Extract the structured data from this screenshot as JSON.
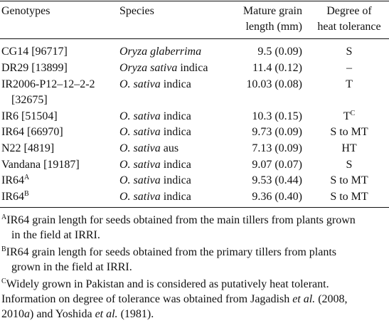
{
  "header": {
    "genotypes": "Genotypes",
    "species": "Species",
    "length_l1": "Mature grain",
    "length_l2": "length (mm)",
    "degree_l1": "Degree of",
    "degree_l2": "heat tolerance"
  },
  "rows": [
    {
      "genotype": "CG14 [96717]",
      "species_italic": "Oryza glaberrima",
      "species_rest": "",
      "length": "9.5 (0.09)",
      "degree": "S"
    },
    {
      "genotype": "DR29 [13899]",
      "species_italic": "Oryza sativa",
      "species_rest": " indica",
      "length": "11.4 (0.12)",
      "degree": "–"
    },
    {
      "genotype": "IR2006-P12–12–2-2",
      "genotype_cont": "[32675]",
      "species_italic": "O. sativa",
      "species_rest": " indica",
      "length": "10.03 (0.08)",
      "degree": "T"
    },
    {
      "genotype": "IR6 [51504]",
      "species_italic": "O. sativa",
      "species_rest": " indica",
      "length": "10.3 (0.15)",
      "degree": "T",
      "degree_sup": "C"
    },
    {
      "genotype": "IR64 [66970]",
      "species_italic": "O. sativa",
      "species_rest": " indica",
      "length": "9.73 (0.09)",
      "degree": "S to MT"
    },
    {
      "genotype": "N22 [4819]",
      "species_italic": "O. sativa",
      "species_rest": " aus",
      "length": "7.13 (0.09)",
      "degree": "HT"
    },
    {
      "genotype": "Vandana [19187]",
      "species_italic": "O. sativa",
      "species_rest": " indica",
      "length": "9.07 (0.07)",
      "degree": "S"
    },
    {
      "genotype": "IR64",
      "genotype_sup": "A",
      "species_italic": "O. sativa",
      "species_rest": " indica",
      "length": "9.53 (0.44)",
      "degree": "S to MT"
    },
    {
      "genotype": "IR64",
      "genotype_sup": "B",
      "species_italic": "O. sativa",
      "species_rest": " indica",
      "length": "9.36 (0.40)",
      "degree": "S to MT"
    }
  ],
  "footnotes": {
    "a_mark": "A",
    "a_l1": "IR64 grain length for seeds obtained from the main tillers from plants grown",
    "a_l2": "in the field at IRRI.",
    "b_mark": "B",
    "b_l1": "IR64 grain length for seeds obtained from the primary tillers from plants",
    "b_l2": "grown in the field at IRRI.",
    "c_mark": "C",
    "c_l1": "Widely grown in Pakistan and is considered as putatively heat tolerant.",
    "c_l2a": "Information on degree of tolerance was obtained from Jagadish ",
    "c_l2b": "et al.",
    "c_l2c": " (2008,",
    "c_l3a": "2010",
    "c_l3b": "a",
    "c_l3c": ") and Yoshida ",
    "c_l3d": "et al.",
    "c_l3e": " (1981)."
  }
}
